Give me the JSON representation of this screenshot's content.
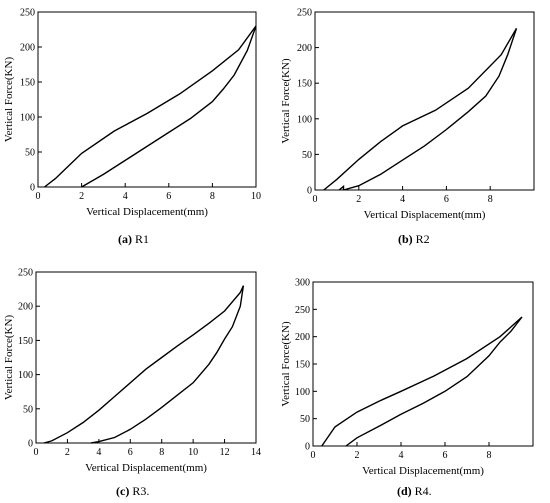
{
  "chart_data": [
    {
      "type": "line",
      "caption_tag": "(a)",
      "caption_text": "R1",
      "xlabel": "Vertical Displacement(mm)",
      "ylabel": "Vertical Force(KN)",
      "xlim": [
        0,
        10
      ],
      "ylim": [
        0,
        250
      ],
      "xticks": [
        0,
        2,
        4,
        6,
        8,
        10
      ],
      "yticks": [
        0,
        50,
        100,
        150,
        200,
        250
      ],
      "series": [
        {
          "x": [
            0.3,
            0.8,
            1.5,
            2.0,
            3.5,
            5.0,
            6.5,
            8.0,
            9.2,
            10.0
          ],
          "y": [
            0,
            12,
            33,
            48,
            80,
            105,
            133,
            166,
            196,
            230
          ]
        },
        {
          "x": [
            10.0,
            9.6,
            9.0,
            8.5,
            8.0,
            7.0,
            6.0,
            5.0,
            4.0,
            3.0,
            2.0
          ],
          "y": [
            230,
            195,
            160,
            140,
            122,
            98,
            78,
            58,
            38,
            18,
            0
          ]
        }
      ]
    },
    {
      "type": "line",
      "caption_tag": "(b)",
      "caption_text": "R2",
      "xlabel": "Vertical Displacement(mm)",
      "ylabel": "Vertical Force(KN)",
      "xlim": [
        0,
        10
      ],
      "ylim": [
        0,
        250
      ],
      "xticks": [
        0,
        2,
        4,
        6,
        8
      ],
      "yticks": [
        0,
        50,
        100,
        150,
        200,
        250
      ],
      "series": [
        {
          "x": [
            0.4,
            1.0,
            2.0,
            3.0,
            4.0,
            5.5,
            7.0,
            8.5,
            9.2
          ],
          "y": [
            0,
            15,
            43,
            68,
            90,
            112,
            143,
            190,
            227
          ]
        },
        {
          "x": [
            9.2,
            8.8,
            8.4,
            7.8,
            7.0,
            6.0,
            5.0,
            4.0,
            3.0,
            2.0,
            1.3
          ],
          "y": [
            227,
            190,
            160,
            132,
            110,
            85,
            62,
            42,
            22,
            6,
            0
          ]
        },
        {
          "x": [
            1.1,
            1.3,
            1.3
          ],
          "y": [
            0,
            5,
            0
          ]
        }
      ]
    },
    {
      "type": "line",
      "caption_tag": "(c)",
      "caption_text": "R3.",
      "xlabel": "Vertical Displacement(mm)",
      "ylabel": "Vertical Force(KN)",
      "xlim": [
        0,
        14
      ],
      "ylim": [
        0,
        250
      ],
      "xticks": [
        0,
        2,
        4,
        6,
        8,
        10,
        12,
        14
      ],
      "yticks": [
        0,
        50,
        100,
        150,
        200,
        250
      ],
      "series": [
        {
          "x": [
            0.5,
            1.0,
            2.0,
            3.0,
            4.0,
            5.0,
            6.0,
            7.0,
            8.0,
            9.0,
            10.0,
            11.0,
            12.0,
            13.0,
            13.2
          ],
          "y": [
            0,
            3,
            15,
            30,
            48,
            68,
            88,
            108,
            125,
            142,
            158,
            175,
            193,
            220,
            230
          ]
        },
        {
          "x": [
            13.2,
            13.0,
            12.5,
            12.0,
            11.5,
            11.0,
            10.0,
            9.0,
            8.0,
            7.0,
            6.0,
            5.0,
            4.0,
            3.5
          ],
          "y": [
            230,
            200,
            170,
            152,
            132,
            115,
            88,
            70,
            52,
            35,
            20,
            8,
            2,
            0
          ]
        }
      ]
    },
    {
      "type": "line",
      "caption_tag": "(d)",
      "caption_text": "R4.",
      "xlabel": "Vertical Displacement(mm)",
      "ylabel": "Vertical Force(KN)",
      "xlim": [
        0,
        10
      ],
      "ylim": [
        0,
        300
      ],
      "xticks": [
        0,
        2,
        4,
        6,
        8
      ],
      "yticks": [
        0,
        50,
        100,
        150,
        200,
        250,
        300
      ],
      "series": [
        {
          "x": [
            0.4,
            1.0,
            2.0,
            3.0,
            4.0,
            5.5,
            7.0,
            8.5,
            9.5
          ],
          "y": [
            0,
            35,
            62,
            82,
            100,
            128,
            160,
            200,
            236
          ]
        },
        {
          "x": [
            9.5,
            9.0,
            8.5,
            8.0,
            7.0,
            6.0,
            5.0,
            4.0,
            3.0,
            2.0,
            1.5
          ],
          "y": [
            236,
            210,
            190,
            165,
            127,
            100,
            78,
            58,
            36,
            15,
            0
          ]
        }
      ]
    }
  ]
}
